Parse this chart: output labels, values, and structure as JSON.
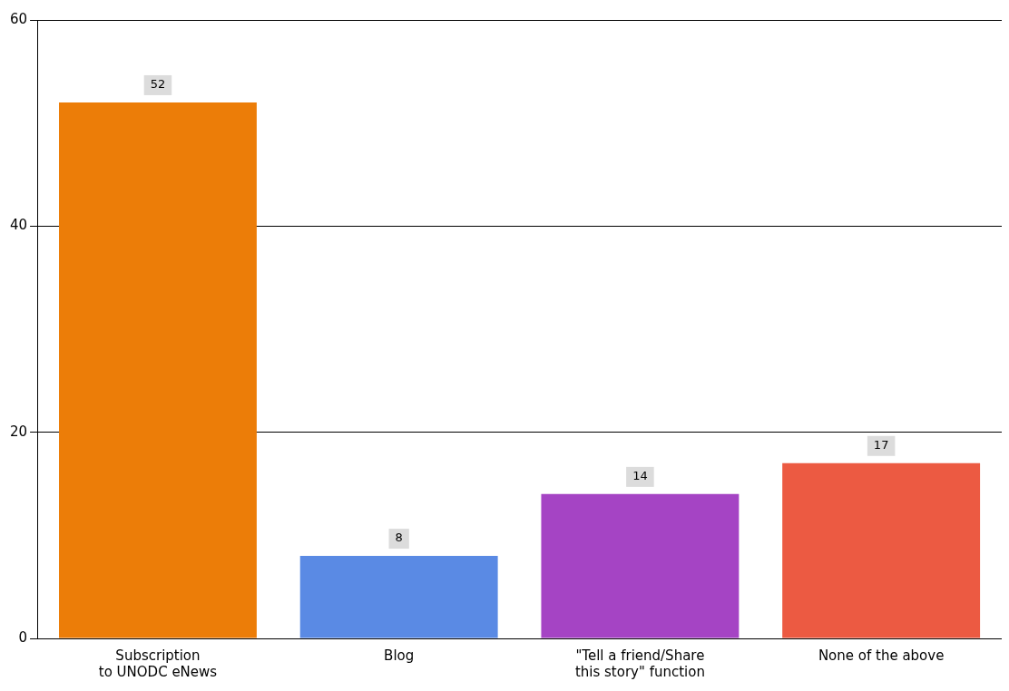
{
  "chart_data": {
    "type": "bar",
    "categories": [
      "Subscription\nto UNODC eNews",
      "Blog",
      "\"Tell a friend/Share\nthis story\" function",
      "None of the above"
    ],
    "values": [
      52,
      8,
      14,
      17
    ],
    "colors": [
      "#ec7d08",
      "#5a8ae4",
      "#a544c4",
      "#ec5a42"
    ],
    "ylim": [
      0,
      60
    ],
    "yticks": [
      0,
      20,
      40,
      60
    ],
    "grid": "y",
    "data_labels": true,
    "legend": false
  }
}
